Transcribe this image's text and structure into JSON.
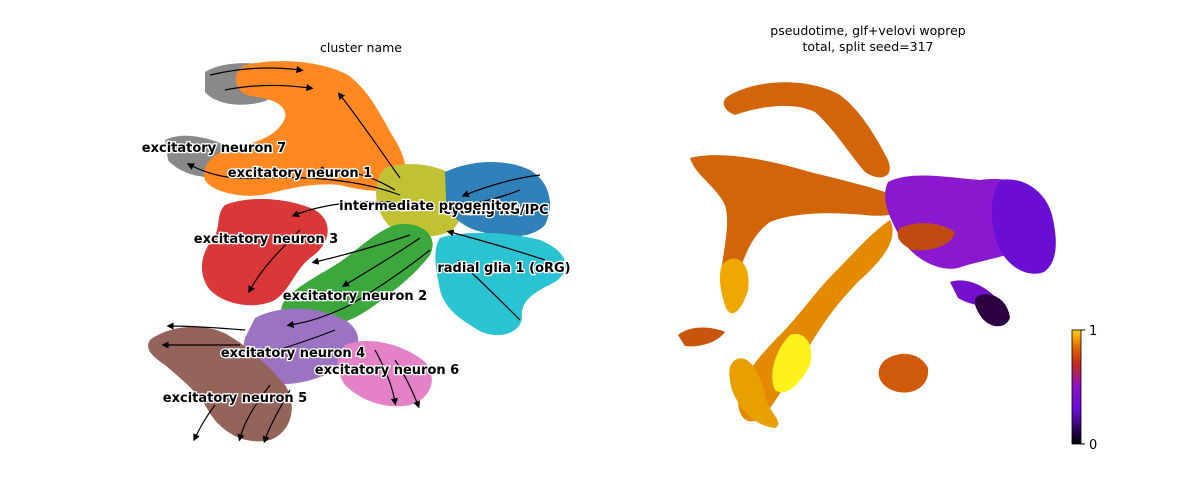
{
  "panels": {
    "left": {
      "title": "cluster name"
    },
    "right": {
      "title_line1": "pseudotime, glf+velovi woprep",
      "title_line2": "total, split seed=317"
    }
  },
  "chart_data": [
    {
      "type": "scatter",
      "title": "cluster name",
      "xlabel": "",
      "ylabel": "",
      "grid": false,
      "legend": "on data",
      "overlay": "velocity streamlines",
      "series": [
        {
          "name": "cycling RG/IPC",
          "color": "#1f77b4"
        },
        {
          "name": "radial glia 1 (oRG)",
          "color": "#17becf"
        },
        {
          "name": "intermediate progenitor",
          "color": "#bcbd22"
        },
        {
          "name": "excitatory neuron 1",
          "color": "#ff7f0e"
        },
        {
          "name": "excitatory neuron 2",
          "color": "#2ca02c"
        },
        {
          "name": "excitatory neuron 3",
          "color": "#d62728"
        },
        {
          "name": "excitatory neuron 4",
          "color": "#9467bd"
        },
        {
          "name": "excitatory neuron 5",
          "color": "#8c564b"
        },
        {
          "name": "excitatory neuron 6",
          "color": "#e377c2"
        },
        {
          "name": "excitatory neuron 7",
          "color": "#7f7f7f"
        }
      ]
    },
    {
      "type": "scatter",
      "title": "pseudotime, glf+velovi woprep\ntotal, split seed=317",
      "xlabel": "",
      "ylabel": "",
      "grid": false,
      "colorbar": {
        "min": 0,
        "max": 1,
        "ticks": [
          "0",
          "1"
        ],
        "colormap": "gnuplot"
      }
    }
  ]
}
